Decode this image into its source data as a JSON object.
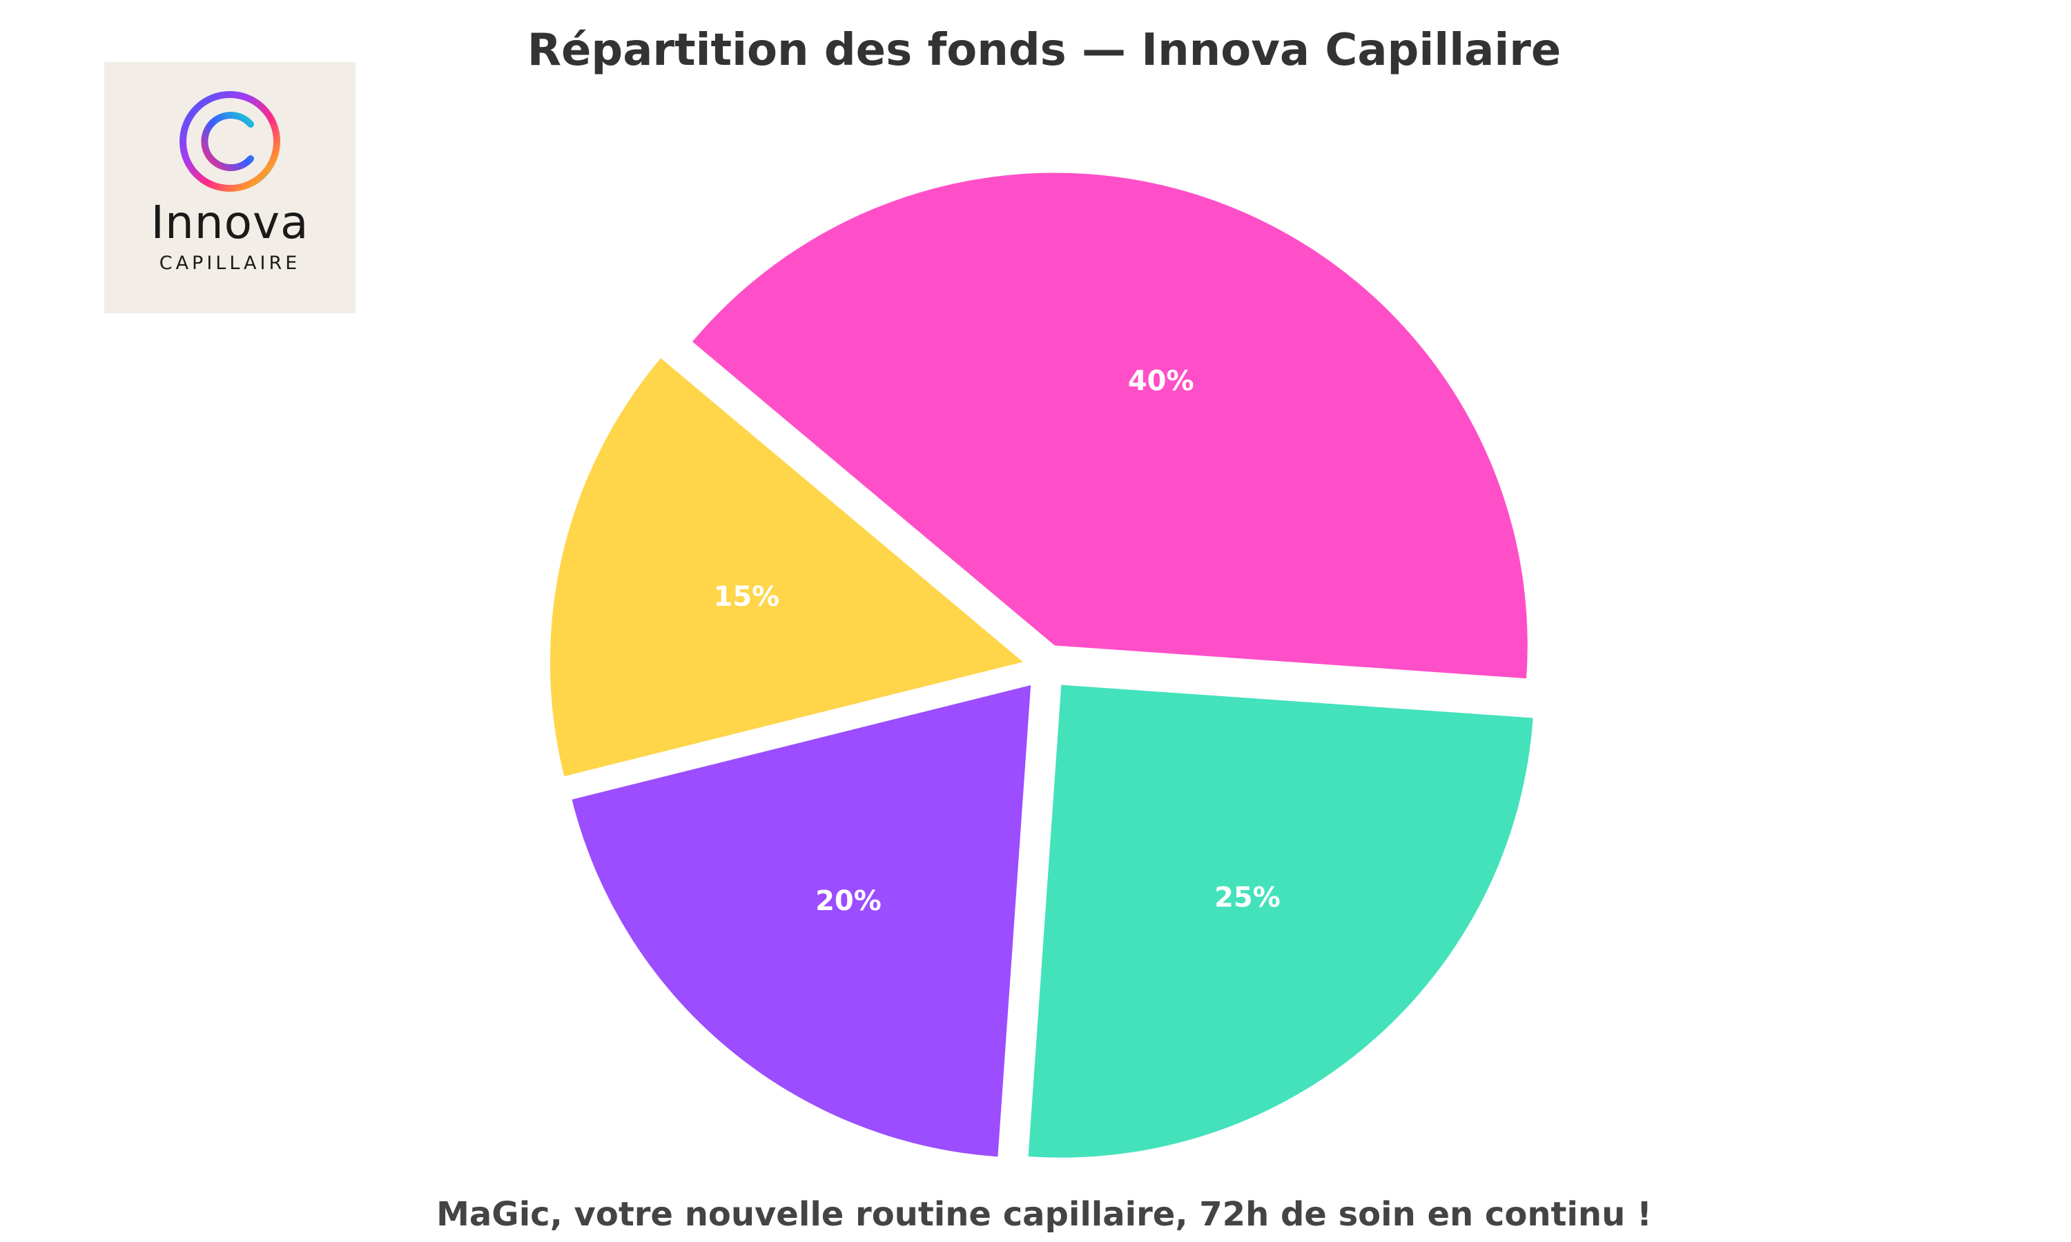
{
  "chart_data": {
    "type": "pie",
    "title": "Répartition des fonds — Innova Capillaire",
    "subtitle": "",
    "legend": "none",
    "slices": [
      {
        "label": "40%",
        "value": 40,
        "color": "#ff4fc8"
      },
      {
        "label": "25%",
        "value": 25,
        "color": "#43e2bb"
      },
      {
        "label": "20%",
        "value": 20,
        "color": "#9b4dff"
      },
      {
        "label": "15%",
        "value": 15,
        "color": "#ffd54a"
      }
    ],
    "start_angle_deg": 140,
    "direction": "clockwise",
    "exploded": true
  },
  "caption": "MaGic, votre nouvelle routine capillaire, 72h de soin en continu !",
  "logo": {
    "name": "Innova",
    "subtitle": "CAPILLAIRE",
    "background": "#f2eee7"
  }
}
